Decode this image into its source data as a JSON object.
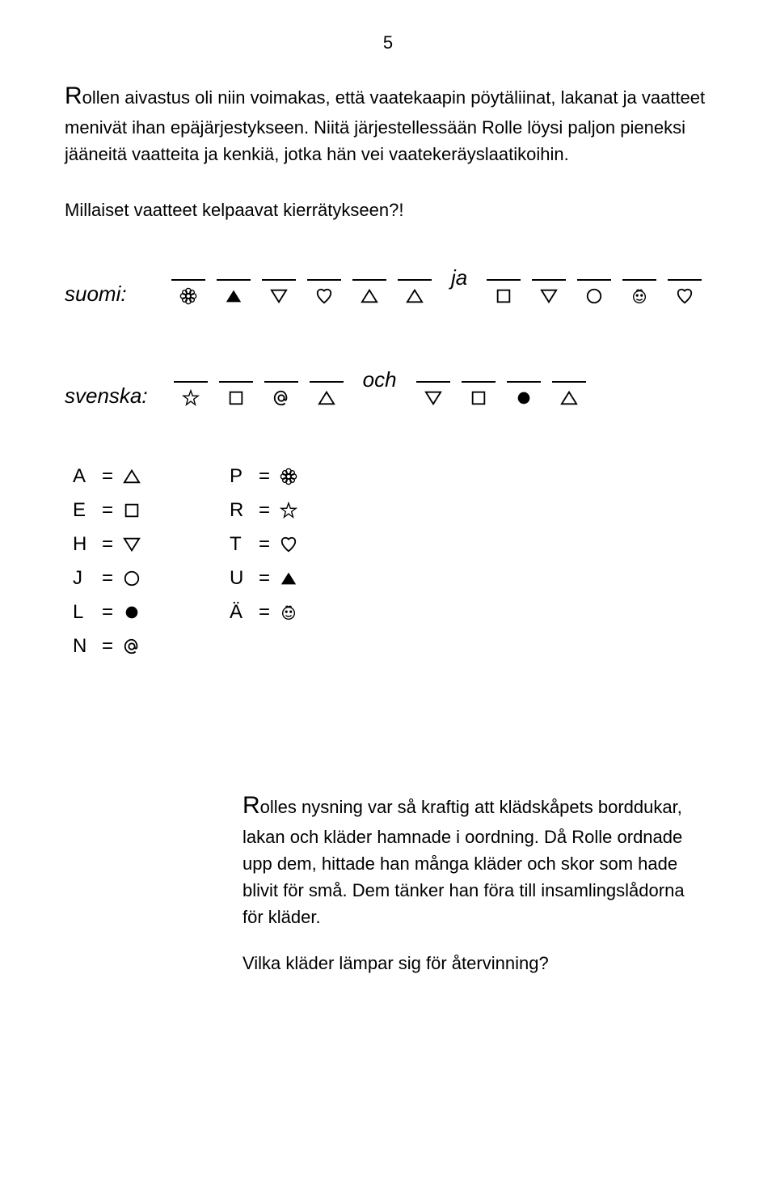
{
  "page_number": "5",
  "paragraph1": {
    "dropCap": "R",
    "rest": "ollen aivastus oli niin voimakas, että vaatekaapin pöytäliinat, lakanat ja vaatteet menivät ihan epäjärjestykseen. Niitä järjestellessään Rolle löysi paljon pieneksi jääneitä vaatteita ja kenkiä, jotka hän vei vaatekeräyslaatikoihin."
  },
  "question1": "Millaiset vaatteet kelpaavat kierrätykseen?!",
  "puzzle": {
    "rows": [
      {
        "label": "suomi:",
        "group1": [
          "flower",
          "tri-up-filled",
          "tri-down",
          "heart",
          "tri-up",
          "tri-up"
        ],
        "connector": "ja",
        "group2": [
          "square",
          "tri-down",
          "circle-open",
          "face",
          "heart"
        ]
      },
      {
        "label": "svenska:",
        "group1": [
          "star",
          "square",
          "at",
          "tri-up"
        ],
        "connector": "och",
        "group2": [
          "tri-down",
          "square",
          "circle-filled",
          "tri-up"
        ]
      }
    ]
  },
  "legend": {
    "col1": [
      {
        "letter": "A",
        "icon": "tri-up"
      },
      {
        "letter": "E",
        "icon": "square"
      },
      {
        "letter": "H",
        "icon": "tri-down"
      },
      {
        "letter": "J",
        "icon": "circle-open"
      },
      {
        "letter": "L",
        "icon": "circle-filled"
      },
      {
        "letter": "N",
        "icon": "at"
      }
    ],
    "col2": [
      {
        "letter": "P",
        "icon": "flower"
      },
      {
        "letter": "R",
        "icon": "star"
      },
      {
        "letter": "T",
        "icon": "heart"
      },
      {
        "letter": "U",
        "icon": "tri-up-filled"
      },
      {
        "letter": "Ä",
        "icon": "face"
      }
    ]
  },
  "paragraph2": {
    "dropCap": "R",
    "rest": "olles nysning var så kraftig att klädskåpets borddukar, lakan och kläder hamnade i oordning. Då Rolle ordnade upp dem, hittade han många kläder och skor som hade blivit för små. Dem tänker han föra till insamlingslådorna för kläder."
  },
  "question2": "Vilka kläder lämpar sig för återvinning?",
  "colors": {
    "text": "#000000",
    "bg": "#ffffff"
  }
}
